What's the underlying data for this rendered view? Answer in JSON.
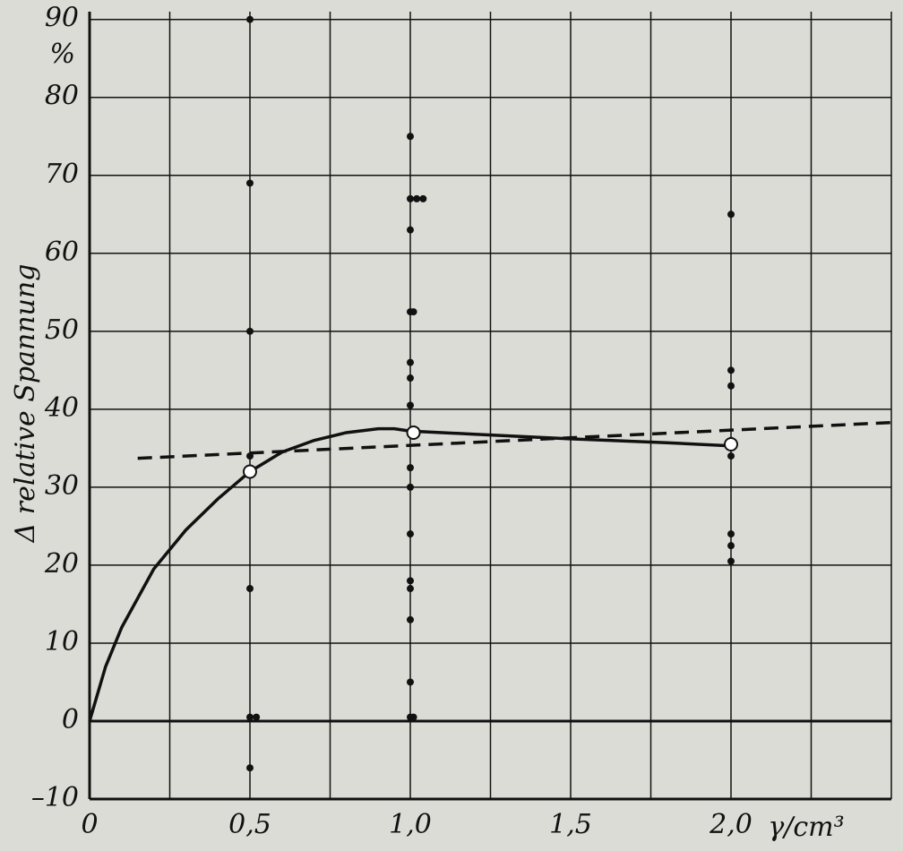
{
  "chart_data": {
    "type": "scatter",
    "y_label": "Δ relative Spannung",
    "y_unit": "%",
    "x_label": "γ/cm³",
    "xlim": [
      0,
      2.5
    ],
    "ylim": [
      -10,
      91
    ],
    "xticks": [
      0,
      {
        "value": 0.5,
        "label": "0,5"
      },
      {
        "value": 1.0,
        "label": "1,0"
      },
      {
        "value": 1.5,
        "label": "1,5"
      },
      {
        "value": 2.0,
        "label": "2,0"
      }
    ],
    "x_minor_grid": [
      0.25,
      0.75,
      1.25,
      1.75,
      2.25,
      2.5
    ],
    "yticks": [
      {
        "value": -10,
        "label": "–10"
      },
      0,
      10,
      20,
      30,
      40,
      50,
      60,
      70,
      80,
      90
    ],
    "grid": true,
    "series": [
      {
        "kind": "line",
        "dash": true,
        "color": "#111111",
        "x": [
          0.15,
          2.5
        ],
        "values": [
          33.7,
          38.3
        ]
      },
      {
        "kind": "line",
        "dash": false,
        "color": "#111111",
        "x": [
          0,
          0.05,
          0.1,
          0.2,
          0.3,
          0.4,
          0.5,
          0.6,
          0.7,
          0.8,
          0.9,
          0.95,
          1.0,
          1.2,
          1.5,
          1.8,
          2.0
        ],
        "values": [
          0,
          7,
          12,
          19.5,
          24.5,
          28.5,
          32,
          34.5,
          36,
          37,
          37.5,
          37.5,
          37.2,
          36.8,
          36.2,
          35.7,
          35.3
        ]
      },
      {
        "kind": "points",
        "marker": "filled",
        "color": "#111111",
        "x": [
          0.5,
          0.5,
          0.5,
          0.5,
          0.5,
          0.5,
          0.52,
          0.5,
          1.0,
          1.0,
          1.02,
          1.04,
          1.0,
          1.0,
          1.01,
          1.0,
          1.0,
          1.0,
          1.0,
          1.0,
          1.0,
          1.0,
          1.0,
          1.0,
          1.0,
          1.0,
          1.01,
          2.0,
          2.0,
          2.0,
          2.0,
          2.0,
          2.0,
          2.0,
          2.0
        ],
        "values": [
          90,
          69,
          50,
          34,
          17,
          0.5,
          0.5,
          -6,
          75,
          67,
          67,
          67,
          63,
          52.5,
          52.5,
          46,
          44,
          40.5,
          32.5,
          30,
          24,
          18,
          17,
          13,
          5,
          0.5,
          0.5,
          65,
          45,
          43,
          36,
          34,
          24,
          22.5,
          20.5
        ]
      },
      {
        "kind": "points",
        "marker": "open",
        "color": "#111111",
        "x": [
          0.5,
          1.01,
          2.0
        ],
        "values": [
          32,
          37,
          35.5
        ]
      }
    ]
  }
}
